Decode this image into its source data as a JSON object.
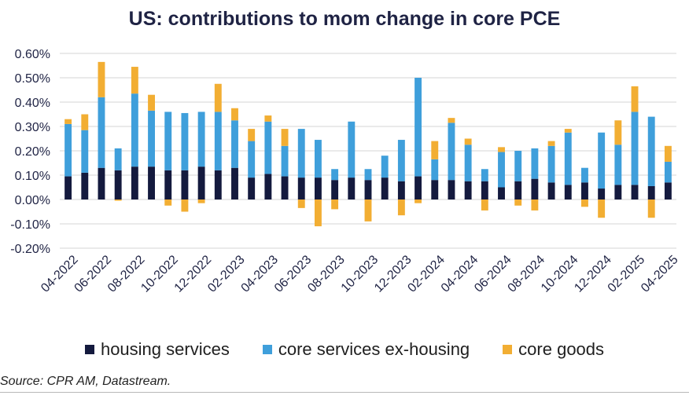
{
  "colors": {
    "housing": "#141a3e",
    "services": "#3f9fdb",
    "goods": "#f2ae33",
    "grid": "#d4d4d4",
    "axis_text": "#1f2344"
  },
  "source": "Source: CPR AM, Datastream.",
  "chart_data": {
    "type": "bar",
    "stacked": true,
    "title": "US: contributions to mom change in core PCE",
    "xlabel": "",
    "ylabel": "",
    "ylim": [
      -0.2,
      0.6
    ],
    "yticks": [
      -0.2,
      -0.1,
      0.0,
      0.1,
      0.2,
      0.3,
      0.4,
      0.5,
      0.6
    ],
    "ytick_labels": [
      "-0.20%",
      "-0.10%",
      "0.00%",
      "0.10%",
      "0.20%",
      "0.30%",
      "0.40%",
      "0.50%",
      "0.60%"
    ],
    "grid": true,
    "legend_position": "bottom",
    "categories": [
      "04-2022",
      "05-2022",
      "06-2022",
      "07-2022",
      "08-2022",
      "09-2022",
      "10-2022",
      "11-2022",
      "12-2022",
      "01-2023",
      "02-2023",
      "03-2023",
      "04-2023",
      "05-2023",
      "06-2023",
      "07-2023",
      "08-2023",
      "09-2023",
      "10-2023",
      "11-2023",
      "12-2023",
      "01-2024",
      "02-2024",
      "03-2024",
      "04-2024",
      "05-2024",
      "06-2024",
      "07-2024",
      "08-2024",
      "09-2024",
      "10-2024",
      "11-2024",
      "12-2024",
      "01-2025",
      "02-2025",
      "03-2025",
      "04-2025"
    ],
    "x_tick_labels": [
      "04-2022",
      "06-2022",
      "08-2022",
      "10-2022",
      "12-2022",
      "02-2023",
      "04-2023",
      "06-2023",
      "08-2023",
      "10-2023",
      "12-2023",
      "02-2024",
      "04-2024",
      "06-2024",
      "08-2024",
      "10-2024",
      "12-2024",
      "02-2025",
      "04-2025"
    ],
    "series": [
      {
        "name": "housing services",
        "values": [
          0.095,
          0.11,
          0.13,
          0.12,
          0.135,
          0.135,
          0.12,
          0.12,
          0.135,
          0.12,
          0.13,
          0.09,
          0.105,
          0.095,
          0.09,
          0.09,
          0.08,
          0.09,
          0.08,
          0.09,
          0.075,
          0.095,
          0.08,
          0.08,
          0.075,
          0.075,
          0.05,
          0.075,
          0.085,
          0.07,
          0.06,
          0.07,
          0.045,
          0.06,
          0.06,
          0.055,
          0.07
        ]
      },
      {
        "name": "core services ex-housing",
        "values": [
          0.215,
          0.175,
          0.29,
          0.09,
          0.3,
          0.23,
          0.24,
          0.235,
          0.225,
          0.24,
          0.195,
          0.15,
          0.215,
          0.125,
          0.2,
          0.155,
          0.045,
          0.23,
          0.045,
          0.09,
          0.17,
          0.405,
          0.085,
          0.235,
          0.15,
          0.05,
          0.145,
          0.125,
          0.125,
          0.15,
          0.215,
          0.06,
          0.23,
          0.165,
          0.3,
          0.285,
          0.085
        ]
      },
      {
        "name": "core goods",
        "values": [
          0.02,
          0.065,
          0.145,
          -0.005,
          0.11,
          0.065,
          -0.025,
          -0.05,
          -0.015,
          0.115,
          0.05,
          0.05,
          0.025,
          0.07,
          -0.035,
          -0.11,
          -0.04,
          0.0,
          -0.09,
          0.0,
          -0.065,
          -0.015,
          0.075,
          0.02,
          0.025,
          -0.045,
          0.02,
          -0.025,
          -0.045,
          0.02,
          0.015,
          -0.03,
          -0.075,
          0.1,
          0.105,
          -0.075,
          0.065
        ]
      }
    ]
  }
}
